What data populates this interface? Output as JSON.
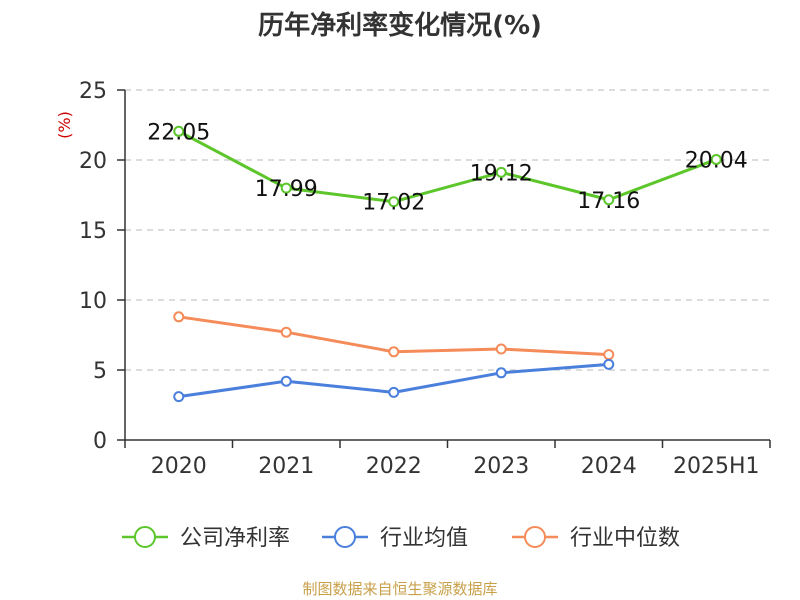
{
  "chart_data": {
    "type": "line",
    "title": "历年净利率变化情况(%)",
    "ylabel": "(%)",
    "categories": [
      "2020",
      "2021",
      "2022",
      "2023",
      "2024",
      "2025H1"
    ],
    "ylim": [
      0,
      25
    ],
    "yticks": [
      0,
      5,
      10,
      15,
      20,
      25
    ],
    "grid": true,
    "legend_position": "bottom",
    "series": [
      {
        "name": "公司净利率",
        "color": "#5cc62b",
        "values": [
          22.05,
          17.99,
          17.02,
          19.12,
          17.16,
          20.04
        ],
        "labels": [
          "22.05",
          "17.99",
          "17.02",
          "19.12",
          "17.16",
          "20.04"
        ]
      },
      {
        "name": "行业均值",
        "color": "#4a7fdc",
        "values": [
          3.1,
          4.2,
          3.4,
          4.8,
          5.4,
          null
        ],
        "labels": null
      },
      {
        "name": "行业中位数",
        "color": "#f58b58",
        "values": [
          8.8,
          7.7,
          6.3,
          6.5,
          6.1,
          null
        ],
        "labels": null
      }
    ]
  },
  "source": "制图数据来自恒生聚源数据库"
}
